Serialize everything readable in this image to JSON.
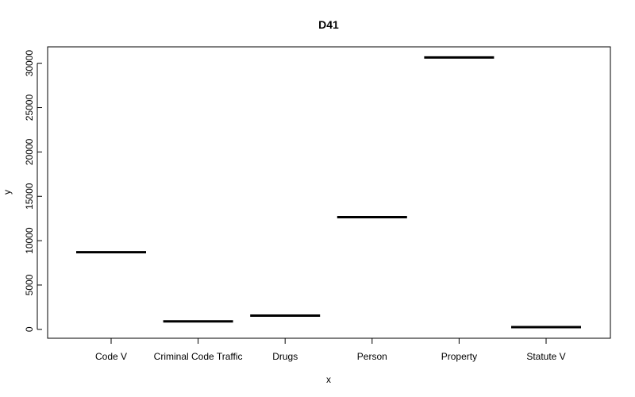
{
  "chart_data": {
    "type": "bar",
    "title": "D41",
    "xlabel": "x",
    "ylabel": "y",
    "categories": [
      "Code V",
      "Criminal Code Traffic",
      "Drugs",
      "Person",
      "Property",
      "Statute V"
    ],
    "values": [
      8700,
      900,
      1550,
      12650,
      30650,
      250
    ],
    "ylim": [
      -1000,
      31850
    ],
    "yticks": [
      0,
      5000,
      10000,
      15000,
      20000,
      25000,
      30000
    ],
    "grid": false,
    "legend": "none",
    "mark_color": "#000000"
  }
}
